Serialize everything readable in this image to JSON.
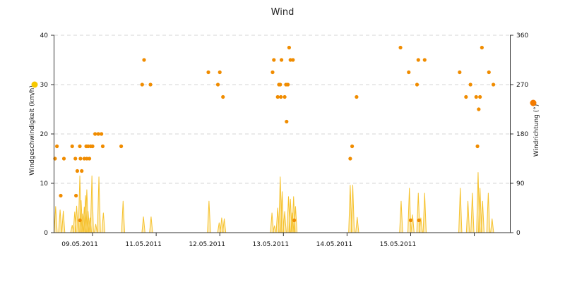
{
  "chart_data": {
    "type": "line",
    "title": "Wind",
    "left_axis": {
      "label": "Windgeschwindigkeit (km/h)",
      "min": 0,
      "max": 40,
      "ticks": [
        0,
        10,
        20,
        30,
        40
      ]
    },
    "right_axis": {
      "label": "Windrichtung (°)",
      "min": 0,
      "max": 360,
      "ticks": [
        0,
        90,
        180,
        270,
        360
      ]
    },
    "x_axis": {
      "min": 0,
      "max": 7.16,
      "tick_positions": [
        0.6,
        1.6,
        2.6,
        3.6,
        4.6,
        5.6,
        6.6
      ],
      "date_labels": [
        {
          "x": 0.4,
          "label": "09.05.2011"
        },
        {
          "x": 1.4,
          "label": "11.05.2011"
        },
        {
          "x": 2.4,
          "label": "12.05.2011"
        },
        {
          "x": 3.4,
          "label": "13.05.2011"
        },
        {
          "x": 4.4,
          "label": "14.05.2011"
        },
        {
          "x": 5.4,
          "label": "15.05.2011"
        }
      ]
    },
    "grid": "horizontal-dashed",
    "colors": {
      "speed": "#f6c22e",
      "direction": "#f08c00",
      "speed_marker": "#f6c800",
      "direction_marker": "#f47b00"
    },
    "series": [
      {
        "kind": "area",
        "axis": "left",
        "spikes": [
          [
            0.02,
            5.3
          ],
          [
            0.09,
            4.6
          ],
          [
            0.14,
            4.4
          ],
          [
            0.28,
            1.5
          ],
          [
            0.32,
            4.2
          ],
          [
            0.35,
            5.4
          ],
          [
            0.4,
            11.5
          ],
          [
            0.42,
            6.5
          ],
          [
            0.44,
            3.8
          ],
          [
            0.47,
            5.2
          ],
          [
            0.49,
            7.5
          ],
          [
            0.51,
            8.7
          ],
          [
            0.53,
            4.3
          ],
          [
            0.56,
            3.0
          ],
          [
            0.59,
            11.5
          ],
          [
            0.65,
            1.7
          ],
          [
            0.7,
            11.3
          ],
          [
            0.77,
            4.0
          ],
          [
            1.08,
            6.4
          ],
          [
            1.4,
            3.2
          ],
          [
            1.52,
            3.2
          ],
          [
            2.43,
            6.4
          ],
          [
            2.59,
            2.0
          ],
          [
            2.63,
            3.0
          ],
          [
            2.67,
            2.8
          ],
          [
            3.42,
            4.0
          ],
          [
            3.46,
            1.4
          ],
          [
            3.51,
            5.0
          ],
          [
            3.55,
            11.3
          ],
          [
            3.58,
            8.3
          ],
          [
            3.62,
            4.3
          ],
          [
            3.68,
            7.3
          ],
          [
            3.71,
            6.8
          ],
          [
            3.74,
            4.0
          ],
          [
            3.76,
            7.3
          ],
          [
            3.79,
            5.3
          ],
          [
            4.65,
            9.6
          ],
          [
            4.69,
            9.6
          ],
          [
            4.76,
            3.1
          ],
          [
            5.45,
            6.4
          ],
          [
            5.58,
            9.0
          ],
          [
            5.63,
            3.6
          ],
          [
            5.72,
            8.0
          ],
          [
            5.76,
            3.0
          ],
          [
            5.82,
            8.0
          ],
          [
            6.38,
            9.0
          ],
          [
            6.5,
            6.4
          ],
          [
            6.57,
            8.0
          ],
          [
            6.66,
            12.2
          ],
          [
            6.69,
            9.0
          ],
          [
            6.73,
            6.4
          ],
          [
            6.82,
            8.0
          ],
          [
            6.88,
            2.8
          ]
        ]
      },
      {
        "kind": "scatter",
        "axis": "right",
        "points": [
          [
            0.01,
            135
          ],
          [
            0.04,
            157.5
          ],
          [
            0.1,
            67.5
          ],
          [
            0.15,
            135
          ],
          [
            0.28,
            157.5
          ],
          [
            0.33,
            135
          ],
          [
            0.34,
            67.5
          ],
          [
            0.36,
            112.5
          ],
          [
            0.4,
            157.5
          ],
          [
            0.41,
            135
          ],
          [
            0.43,
            112.5
          ],
          [
            0.47,
            135
          ],
          [
            0.5,
            157.5
          ],
          [
            0.51,
            135
          ],
          [
            0.53,
            157.5
          ],
          [
            0.55,
            135
          ],
          [
            0.57,
            157.5
          ],
          [
            0.6,
            157.5
          ],
          [
            0.64,
            180
          ],
          [
            0.69,
            180
          ],
          [
            0.74,
            180
          ],
          [
            0.76,
            157.5
          ],
          [
            1.05,
            157.5
          ],
          [
            1.38,
            270
          ],
          [
            1.41,
            315
          ],
          [
            1.51,
            270
          ],
          [
            2.42,
            292.5
          ],
          [
            2.57,
            270
          ],
          [
            2.6,
            292.5
          ],
          [
            2.65,
            247.5
          ],
          [
            3.43,
            292.5
          ],
          [
            3.45,
            315
          ],
          [
            3.51,
            247.5
          ],
          [
            3.53,
            270
          ],
          [
            3.55,
            270
          ],
          [
            3.56,
            247.5
          ],
          [
            3.57,
            315
          ],
          [
            3.62,
            247.5
          ],
          [
            3.64,
            270
          ],
          [
            3.65,
            202.5
          ],
          [
            3.67,
            270
          ],
          [
            3.69,
            337.5
          ],
          [
            3.71,
            315
          ],
          [
            3.75,
            315
          ],
          [
            4.65,
            135
          ],
          [
            4.68,
            157.5
          ],
          [
            4.75,
            247.5
          ],
          [
            5.44,
            337.5
          ],
          [
            5.57,
            292.5
          ],
          [
            5.7,
            270
          ],
          [
            5.72,
            315
          ],
          [
            5.82,
            315
          ],
          [
            6.37,
            292.5
          ],
          [
            6.47,
            247.5
          ],
          [
            6.54,
            270
          ],
          [
            6.63,
            247.5
          ],
          [
            6.65,
            157.5
          ],
          [
            6.67,
            225
          ],
          [
            6.69,
            247.5
          ],
          [
            6.72,
            337.5
          ],
          [
            6.83,
            292.5
          ],
          [
            6.9,
            270
          ]
        ]
      }
    ],
    "markers": [
      {
        "axis": "left",
        "x": 0.4,
        "y": 2.5
      },
      {
        "axis": "left",
        "x": 3.77,
        "y": 2.5
      },
      {
        "axis": "left",
        "x": 5.6,
        "y": 2.5
      },
      {
        "axis": "left",
        "x": 5.73,
        "y": 2.5
      }
    ]
  }
}
